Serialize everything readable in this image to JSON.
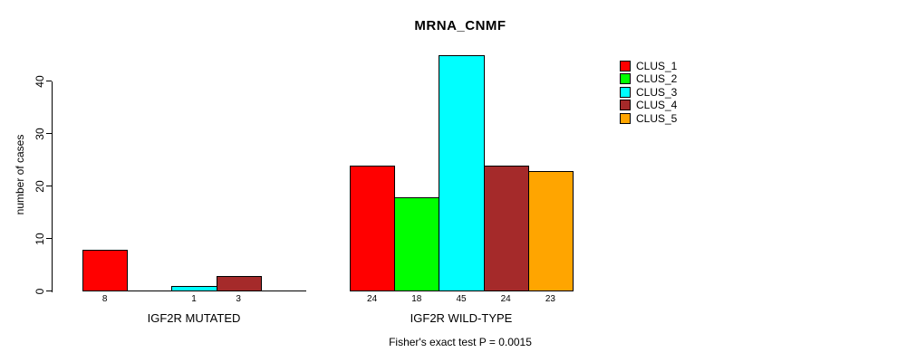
{
  "chart_data": {
    "type": "bar",
    "title": "MRNA_CNMF",
    "ylabel": "number of cases",
    "ylim": [
      0,
      45
    ],
    "yticks": [
      0,
      10,
      20,
      30,
      40
    ],
    "categories": [
      "IGF2R MUTATED",
      "IGF2R WILD-TYPE"
    ],
    "series": [
      {
        "name": "CLUS_1",
        "color": "#ff0000",
        "values": [
          8,
          24
        ]
      },
      {
        "name": "CLUS_2",
        "color": "#00ff00",
        "values": [
          0,
          18
        ]
      },
      {
        "name": "CLUS_3",
        "color": "#00ffff",
        "values": [
          1,
          45
        ]
      },
      {
        "name": "CLUS_4",
        "color": "#a52a2a",
        "values": [
          3,
          24
        ]
      },
      {
        "name": "CLUS_5",
        "color": "#ffa500",
        "values": [
          0,
          23
        ]
      }
    ],
    "bar_value_labels_visible": true,
    "zero_bars_drawn_as_baseline_segments": true,
    "annotation": "Fisher's exact test P = 0.0015",
    "legend_entries": [
      "CLUS_1",
      "CLUS_2",
      "CLUS_3",
      "CLUS_4",
      "CLUS_5"
    ],
    "legend_position": "top-right",
    "grid": false,
    "background_color": "#ffffff",
    "axis_color": "#000000"
  }
}
